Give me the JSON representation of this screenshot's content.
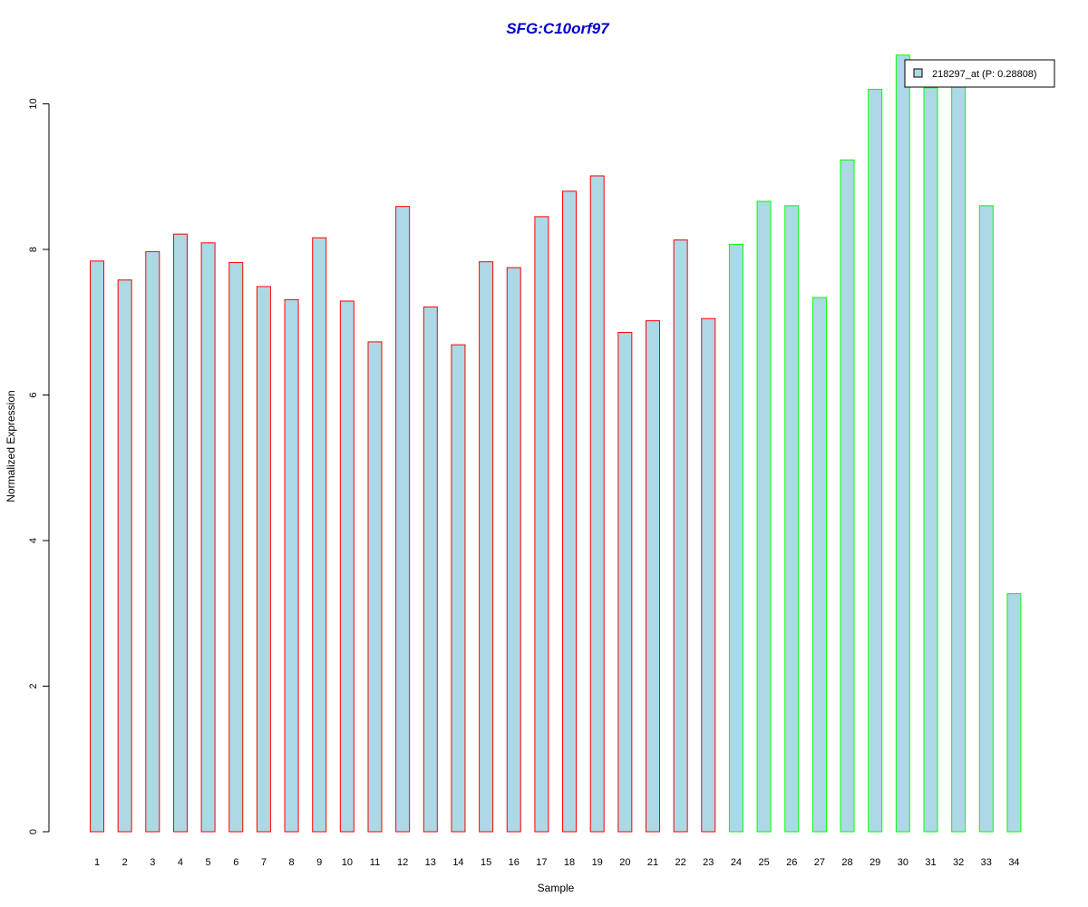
{
  "chart_data": {
    "type": "bar",
    "title": "SFG:C10orf97",
    "xlabel": "Sample",
    "ylabel": "Normalized Expression",
    "ylim": [
      0,
      10.75
    ],
    "y_ticks": [
      0,
      2,
      4,
      6,
      8,
      10
    ],
    "categories": [
      "1",
      "2",
      "3",
      "4",
      "5",
      "6",
      "7",
      "8",
      "9",
      "10",
      "11",
      "12",
      "13",
      "14",
      "15",
      "16",
      "17",
      "18",
      "19",
      "20",
      "21",
      "22",
      "23",
      "24",
      "25",
      "26",
      "27",
      "28",
      "29",
      "30",
      "31",
      "32",
      "33",
      "34"
    ],
    "values": [
      7.84,
      7.58,
      7.97,
      8.21,
      8.09,
      7.82,
      7.49,
      7.31,
      8.16,
      7.29,
      6.73,
      8.59,
      7.21,
      6.69,
      7.83,
      7.75,
      8.45,
      8.8,
      9.01,
      6.86,
      7.02,
      8.13,
      7.05,
      8.07,
      8.66,
      8.6,
      7.34,
      9.23,
      10.2,
      10.67,
      10.22,
      10.35,
      8.6,
      3.27
    ],
    "fill_color": "#add8e6",
    "border_colors": [
      "#ff0000",
      "#ff0000",
      "#ff0000",
      "#ff0000",
      "#ff0000",
      "#ff0000",
      "#ff0000",
      "#ff0000",
      "#ff0000",
      "#ff0000",
      "#ff0000",
      "#ff0000",
      "#ff0000",
      "#ff0000",
      "#ff0000",
      "#ff0000",
      "#ff0000",
      "#ff0000",
      "#ff0000",
      "#ff0000",
      "#ff0000",
      "#ff0000",
      "#ff0000",
      "#00ff00",
      "#00ff00",
      "#00ff00",
      "#00ff00",
      "#00ff00",
      "#00ff00",
      "#00ff00",
      "#00ff00",
      "#00ff00",
      "#00ff00",
      "#00ff00"
    ],
    "legend": {
      "entries": [
        "218297_at (P: 0.28808)"
      ],
      "placement": "top-right"
    },
    "grid": false
  }
}
